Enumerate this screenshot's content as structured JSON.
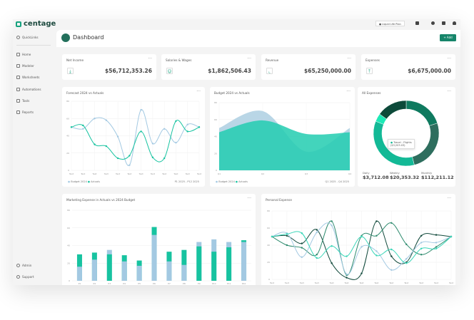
{
  "brand": "centage",
  "topbar": {
    "plan": "● Liquid Life Plan",
    "icons": [
      "layout-icon",
      "globe-icon",
      "bug-icon",
      "user-icon"
    ]
  },
  "sidebar": {
    "quicklinks": "QuickLinks",
    "items": [
      "Home",
      "Modeler",
      "Worksheets",
      "Automations",
      "Tools",
      "Reports"
    ],
    "bottom": [
      "Admin",
      "Support"
    ]
  },
  "header": {
    "title": "Dashboard",
    "add": "+ Add"
  },
  "kpis": [
    {
      "label": "Net Income",
      "value": "$56,712,353.26",
      "icon": "download-icon"
    },
    {
      "label": "Salaries & Wages",
      "value": "$1,862,506.43",
      "icon": "people-icon"
    },
    {
      "label": "Revenue",
      "value": "$65,250,000.00",
      "icon": "chart-icon"
    },
    {
      "label": "Expenses",
      "value": "$6,675,000.00",
      "icon": "upload-icon"
    }
  ],
  "colors": {
    "blue": "#a3c9e2",
    "green": "#17c3a0",
    "dark": "#124a3c",
    "mid": "#2e8b6e",
    "accent": "#16856a"
  },
  "chart_data": [
    {
      "type": "line",
      "title": "Forecast 2024 vs Actuals",
      "categories": [
        "Text",
        "Text",
        "Text",
        "Text",
        "Text",
        "Text",
        "Text",
        "Text",
        "Text",
        "Text",
        "Text",
        "Text"
      ],
      "ylim": [
        0,
        80
      ],
      "yticks": [
        0,
        20,
        40,
        60,
        80
      ],
      "series": [
        {
          "name": "Budget 2024",
          "values": [
            50,
            48,
            60,
            58,
            39,
            6,
            70,
            31,
            48,
            32,
            53,
            50
          ]
        },
        {
          "name": "Actuals",
          "values": [
            50,
            52,
            30,
            28,
            14,
            17,
            45,
            15,
            14,
            57,
            45,
            50
          ]
        }
      ],
      "range": "P1 2025 - P12 2025"
    },
    {
      "type": "area",
      "title": "Budget 2024 vs Actuals",
      "categories": [
        "Q1",
        "Q2",
        "Q3",
        "Q4"
      ],
      "ylim": [
        0,
        80
      ],
      "yticks": [
        0,
        20,
        40,
        60,
        80
      ],
      "series": [
        {
          "name": "Budget 2024",
          "values": [
            50,
            70,
            22,
            50
          ]
        },
        {
          "name": "Actuals",
          "values": [
            45,
            59,
            43,
            45
          ]
        }
      ],
      "range": "Q1 2025 - Q4 2025"
    },
    {
      "type": "pie",
      "title": "All Expenses",
      "values": [
        20,
        26,
        35,
        4,
        15
      ],
      "colors": [
        "#0f7a5f",
        "#2e6e5e",
        "#13b996",
        "#1de9b6",
        "#0d4a3a"
      ],
      "tooltip": {
        "label": "Travel - Flights",
        "value": "($3,203.03)"
      },
      "stats": [
        {
          "label": "Daily",
          "value": "$3,712.08"
        },
        {
          "label": "Weekly",
          "value": "$20,353.32"
        },
        {
          "label": "Monthly",
          "value": "$112,211.12"
        }
      ]
    },
    {
      "type": "bar",
      "title": "Marketing Expense in Actuals vs 2024 Budget",
      "categories": [
        "P1",
        "P2",
        "P3",
        "P4",
        "P5",
        "P6",
        "P7",
        "P8",
        "P9",
        "P10",
        "P11",
        "P12"
      ],
      "ylim": [
        0,
        80
      ],
      "yticks": [
        0,
        20,
        40,
        60,
        80
      ],
      "series": [
        {
          "values": [
            16,
            24,
            35,
            22,
            17,
            52,
            22,
            18,
            44,
            47,
            44,
            44
          ]
        },
        {
          "values": [
            30,
            32,
            30,
            29,
            23,
            61,
            33,
            35,
            39,
            33,
            38,
            46
          ]
        }
      ]
    },
    {
      "type": "line",
      "title": "Personal Expense",
      "categories": [
        "Text",
        "Text",
        "Text",
        "Text",
        "Text",
        "Text",
        "Text",
        "Text",
        "Text",
        "Text",
        "Text",
        "Text",
        "Text"
      ],
      "ylim": [
        0,
        80
      ],
      "yticks": [
        0,
        20,
        40,
        60,
        80
      ],
      "series": [
        {
          "values": [
            50,
            51,
            42,
            58,
            19,
            2,
            7,
            68,
            27,
            20,
            51,
            52,
            50
          ]
        },
        {
          "values": [
            50,
            40,
            37,
            29,
            68,
            5,
            51,
            51,
            66,
            41,
            29,
            38,
            50
          ]
        },
        {
          "values": [
            50,
            54,
            26,
            55,
            63,
            6,
            38,
            33,
            11,
            24,
            43,
            43,
            50
          ]
        },
        {
          "values": [
            50,
            53,
            54,
            25,
            39,
            27,
            50,
            28,
            35,
            19,
            36,
            36,
            50
          ]
        }
      ]
    }
  ]
}
